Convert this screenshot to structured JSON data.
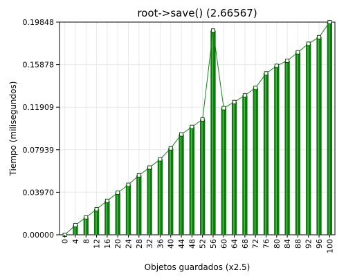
{
  "chart_data": {
    "type": "bar",
    "title": "root->save() (2.66567)",
    "xlabel": "Objetos guardados (x2.5)",
    "ylabel": "Tiempo (milisegundos)",
    "ylim": [
      0,
      0.19848
    ],
    "y_ticks": [
      "0.00000",
      "0.03970",
      "0.07939",
      "0.11909",
      "0.15878",
      "0.19848"
    ],
    "grid": true,
    "legend": "none",
    "categories": [
      "0",
      "4",
      "8",
      "12",
      "16",
      "20",
      "24",
      "28",
      "32",
      "36",
      "40",
      "44",
      "48",
      "52",
      "56",
      "60",
      "64",
      "68",
      "72",
      "76",
      "80",
      "84",
      "88",
      "92",
      "96",
      "100"
    ],
    "values": [
      0.0,
      0.009,
      0.0163,
      0.0239,
      0.0317,
      0.0393,
      0.0467,
      0.0555,
      0.0628,
      0.0705,
      0.0807,
      0.0937,
      0.1007,
      0.1077,
      0.1906,
      0.1182,
      0.1239,
      0.1301,
      0.1371,
      0.1506,
      0.1577,
      0.1624,
      0.1703,
      0.1783,
      0.1844,
      0.1985
    ],
    "colors": {
      "bar": "#0b7a0b",
      "bar_highlight": "#5cc45c",
      "line": "#1a801a",
      "marker_stroke": "#0c4a0c",
      "grid": "#e8e8e8"
    }
  }
}
